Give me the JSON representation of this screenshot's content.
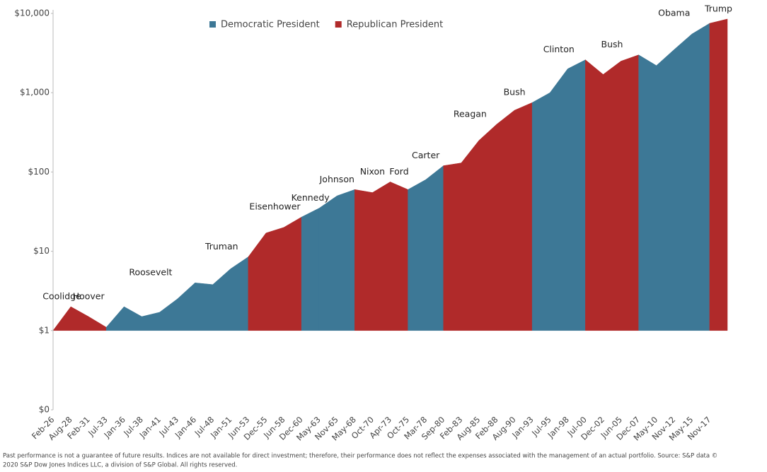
{
  "chart_data": {
    "type": "area",
    "log_scale": true,
    "ylim": [
      0.1,
      10000
    ],
    "yticks": [
      {
        "value": 0.1,
        "label": "$0"
      },
      {
        "value": 1,
        "label": "$1"
      },
      {
        "value": 10,
        "label": "$10"
      },
      {
        "value": 100,
        "label": "$100"
      },
      {
        "value": 1000,
        "label": "$1,000"
      },
      {
        "value": 10000,
        "label": "$10,000"
      }
    ],
    "categories": [
      "Feb-26",
      "Aug-28",
      "Feb-31",
      "Jul-33",
      "Jan-36",
      "Jul-38",
      "Jan-41",
      "Jul-43",
      "Jan-46",
      "Jul-48",
      "Jan-51",
      "Jun-53",
      "Dec-55",
      "Jun-58",
      "Dec-60",
      "May-63",
      "Nov-65",
      "May-68",
      "Oct-70",
      "Apr-73",
      "Oct-75",
      "Mar-78",
      "Sep-80",
      "Feb-83",
      "Aug-85",
      "Feb-88",
      "Aug-90",
      "Jan-93",
      "Jul-95",
      "Jan-98",
      "Jul-00",
      "Dec-02",
      "Jun-05",
      "Dec-07",
      "May-10",
      "Nov-12",
      "May-15",
      "Nov-17",
      null
    ],
    "legend": [
      {
        "name": "Democratic President",
        "color": "#3d7896"
      },
      {
        "name": "Republican President",
        "color": "#b02a2a"
      }
    ],
    "series": [
      {
        "name": "Coolidge",
        "color": "#b02a2a",
        "values": [
          1,
          2.0,
          null,
          null,
          null,
          null,
          null,
          null,
          null,
          null,
          null,
          null,
          null,
          null,
          null,
          null,
          null,
          null,
          null,
          null,
          null,
          null,
          null,
          null,
          null,
          null,
          null,
          null,
          null,
          null,
          null,
          null,
          null,
          null,
          null,
          null,
          null,
          null,
          null
        ]
      },
      {
        "name": "Hoover",
        "color": "#b02a2a",
        "values": [
          null,
          2.0,
          1.5,
          1.1,
          null,
          null,
          null,
          null,
          null,
          null,
          null,
          null,
          null,
          null,
          null,
          null,
          null,
          null,
          null,
          null,
          null,
          null,
          null,
          null,
          null,
          null,
          null,
          null,
          null,
          null,
          null,
          null,
          null,
          null,
          null,
          null,
          null,
          null,
          null
        ]
      },
      {
        "name": "Roosevelt",
        "color": "#3d7896",
        "values": [
          null,
          null,
          null,
          1.1,
          2.0,
          1.5,
          1.7,
          2.5,
          4.0,
          null,
          null,
          null,
          null,
          null,
          null,
          null,
          null,
          null,
          null,
          null,
          null,
          null,
          null,
          null,
          null,
          null,
          null,
          null,
          null,
          null,
          null,
          null,
          null,
          null,
          null,
          null,
          null,
          null,
          null
        ]
      },
      {
        "name": "Truman",
        "color": "#3d7896",
        "values": [
          null,
          null,
          null,
          null,
          null,
          null,
          null,
          null,
          4.0,
          3.8,
          6,
          8.5,
          null,
          null,
          null,
          null,
          null,
          null,
          null,
          null,
          null,
          null,
          null,
          null,
          null,
          null,
          null,
          null,
          null,
          null,
          null,
          null,
          null,
          null,
          null,
          null,
          null,
          null,
          null
        ]
      },
      {
        "name": "Eisenhower",
        "color": "#b02a2a",
        "values": [
          null,
          null,
          null,
          null,
          null,
          null,
          null,
          null,
          null,
          null,
          null,
          8.5,
          17,
          20,
          27,
          null,
          null,
          null,
          null,
          null,
          null,
          null,
          null,
          null,
          null,
          null,
          null,
          null,
          null,
          null,
          null,
          null,
          null,
          null,
          null,
          null,
          null,
          null,
          null
        ]
      },
      {
        "name": "Kennedy",
        "color": "#3d7896",
        "values": [
          null,
          null,
          null,
          null,
          null,
          null,
          null,
          null,
          null,
          null,
          null,
          null,
          null,
          null,
          27,
          35,
          null,
          null,
          null,
          null,
          null,
          null,
          null,
          null,
          null,
          null,
          null,
          null,
          null,
          null,
          null,
          null,
          null,
          null,
          null,
          null,
          null,
          null,
          null
        ]
      },
      {
        "name": "Johnson",
        "color": "#3d7896",
        "values": [
          null,
          null,
          null,
          null,
          null,
          null,
          null,
          null,
          null,
          null,
          null,
          null,
          null,
          null,
          null,
          35,
          50,
          60,
          null,
          null,
          null,
          null,
          null,
          null,
          null,
          null,
          null,
          null,
          null,
          null,
          null,
          null,
          null,
          null,
          null,
          null,
          null,
          null,
          null
        ]
      },
      {
        "name": "Nixon",
        "color": "#b02a2a",
        "values": [
          null,
          null,
          null,
          null,
          null,
          null,
          null,
          null,
          null,
          null,
          null,
          null,
          null,
          null,
          null,
          null,
          null,
          60,
          55,
          75,
          null,
          null,
          null,
          null,
          null,
          null,
          null,
          null,
          null,
          null,
          null,
          null,
          null,
          null,
          null,
          null,
          null,
          null,
          null
        ]
      },
      {
        "name": "Ford",
        "color": "#b02a2a",
        "values": [
          null,
          null,
          null,
          null,
          null,
          null,
          null,
          null,
          null,
          null,
          null,
          null,
          null,
          null,
          null,
          null,
          null,
          null,
          null,
          75,
          60,
          null,
          null,
          null,
          null,
          null,
          null,
          null,
          null,
          null,
          null,
          null,
          null,
          null,
          null,
          null,
          null,
          null,
          null
        ]
      },
      {
        "name": "Carter",
        "color": "#3d7896",
        "values": [
          null,
          null,
          null,
          null,
          null,
          null,
          null,
          null,
          null,
          null,
          null,
          null,
          null,
          null,
          null,
          null,
          null,
          null,
          null,
          null,
          60,
          80,
          120,
          null,
          null,
          null,
          null,
          null,
          null,
          null,
          null,
          null,
          null,
          null,
          null,
          null,
          null,
          null,
          null
        ]
      },
      {
        "name": "Reagan",
        "color": "#b02a2a",
        "values": [
          null,
          null,
          null,
          null,
          null,
          null,
          null,
          null,
          null,
          null,
          null,
          null,
          null,
          null,
          null,
          null,
          null,
          null,
          null,
          null,
          null,
          null,
          120,
          130,
          250,
          400,
          null,
          null,
          null,
          null,
          null,
          null,
          null,
          null,
          null,
          null,
          null,
          null,
          null
        ]
      },
      {
        "name": "Bush",
        "color": "#b02a2a",
        "values": [
          null,
          null,
          null,
          null,
          null,
          null,
          null,
          null,
          null,
          null,
          null,
          null,
          null,
          null,
          null,
          null,
          null,
          null,
          null,
          null,
          null,
          null,
          null,
          null,
          null,
          400,
          600,
          750,
          null,
          null,
          null,
          null,
          null,
          null,
          null,
          null,
          null,
          null,
          null
        ]
      },
      {
        "name": "Clinton",
        "color": "#3d7896",
        "values": [
          null,
          null,
          null,
          null,
          null,
          null,
          null,
          null,
          null,
          null,
          null,
          null,
          null,
          null,
          null,
          null,
          null,
          null,
          null,
          null,
          null,
          null,
          null,
          null,
          null,
          null,
          null,
          750,
          1000,
          2000,
          2600,
          null,
          null,
          null,
          null,
          null,
          null,
          null,
          null
        ]
      },
      {
        "name": "Bush",
        "color": "#b02a2a",
        "values": [
          null,
          null,
          null,
          null,
          null,
          null,
          null,
          null,
          null,
          null,
          null,
          null,
          null,
          null,
          null,
          null,
          null,
          null,
          null,
          null,
          null,
          null,
          null,
          null,
          null,
          null,
          null,
          null,
          null,
          null,
          2600,
          1700,
          2500,
          3000,
          null,
          null,
          null,
          null,
          null
        ]
      },
      {
        "name": "Obama",
        "color": "#3d7896",
        "values": [
          null,
          null,
          null,
          null,
          null,
          null,
          null,
          null,
          null,
          null,
          null,
          null,
          null,
          null,
          null,
          null,
          null,
          null,
          null,
          null,
          null,
          null,
          null,
          null,
          null,
          null,
          null,
          null,
          null,
          null,
          null,
          null,
          null,
          3000,
          2200,
          3500,
          5500,
          7500,
          null
        ]
      },
      {
        "name": "Trump",
        "color": "#b02a2a",
        "values": [
          null,
          null,
          null,
          null,
          null,
          null,
          null,
          null,
          null,
          null,
          null,
          null,
          null,
          null,
          null,
          null,
          null,
          null,
          null,
          null,
          null,
          null,
          null,
          null,
          null,
          null,
          null,
          null,
          null,
          null,
          null,
          null,
          null,
          null,
          null,
          null,
          null,
          7500,
          8500
        ]
      }
    ],
    "footnote": [
      "Past performance is not a guarantee of future results. Indices are not available for direct investment; therefore, their performance does not reflect the expenses associated with the management of an actual portfolio. Source: S&P data ©",
      "2020 S&P Dow Jones Indices LLC, a division of S&P Global. All rights reserved."
    ]
  }
}
